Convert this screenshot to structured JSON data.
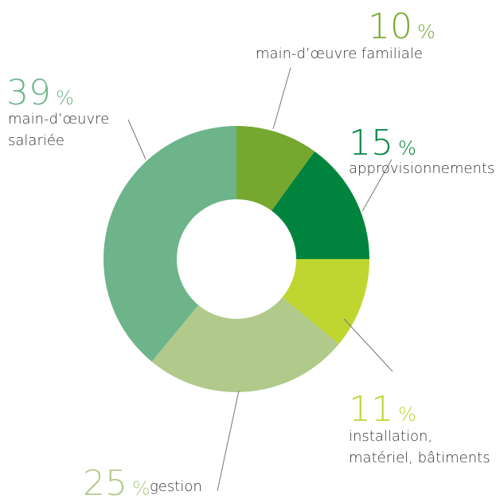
{
  "chart_data": {
    "type": "donut",
    "categories": [
      "main-d’œuvre familiale",
      "approvisionnements",
      "installation, matériel, bâtiments",
      "gestion",
      "main-d’œuvre salariée"
    ],
    "values": [
      10,
      15,
      11,
      25,
      39
    ],
    "percent_sign": "%",
    "colors": [
      "#76a830",
      "#00843d",
      "#bed62f",
      "#b1c98a",
      "#6db48a"
    ]
  }
}
